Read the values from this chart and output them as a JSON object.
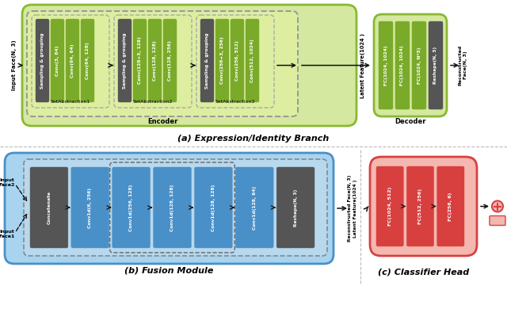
{
  "fig_width": 6.4,
  "fig_height": 4.04,
  "dpi": 100,
  "bg_color": "#ffffff",
  "top_bg_color": "#d4e8a0",
  "top_bg_border": "#8ab832",
  "green_block": "#7aaa2a",
  "green_block_light": "#8fbd35",
  "dark_block": "#555555",
  "decoder_bg": "#d4e8a0",
  "decoder_border": "#8ab832",
  "bottom_bg_color": "#a8d4f0",
  "bottom_bg_border": "#4a90c8",
  "blue_block": "#4a90c8",
  "classifier_bg": "#f4b8b0",
  "classifier_border": "#d84040",
  "red_block": "#d84040",
  "arrow_color": "#111111",
  "sa1_blocks": [
    "Sampling & grouping",
    "Conv(3, 64)",
    "Conv(64, 64)",
    "Conv(64, 128)"
  ],
  "sa1_dark": [
    true,
    false,
    false,
    false
  ],
  "sa2_blocks": [
    "Sampling & grouping",
    "Conv(128+3, 128)",
    "Conv(128, 128)",
    "Conv(128, 256)"
  ],
  "sa2_dark": [
    true,
    false,
    false,
    false
  ],
  "sa3_blocks": [
    "Sampling & grouping",
    "Conv(256+3, 256)",
    "Conv(256, 512)",
    "Conv(512, 1024)"
  ],
  "sa3_dark": [
    true,
    false,
    false,
    false
  ],
  "decoder_blocks": [
    "FC(1024, 1024)",
    "FC(1024, 1024)",
    "FC(1024, N*3)",
    "Reshape(N, 3)"
  ],
  "decoder_dark": [
    false,
    false,
    false,
    true
  ],
  "fusion_blocks": [
    "Concatenate",
    "Conv1d(6, 256)",
    "Conv1d(256, 128)",
    "Conv1d(128, 128)",
    "Conv1d(128, 128)",
    "Conv1d(128, 64)",
    "Reshape(N, 3)"
  ],
  "fusion_dark": [
    true,
    false,
    false,
    false,
    false,
    false,
    true
  ],
  "classifier_blocks": [
    "FC(1024, 512)",
    "FC(512, 256)",
    "FC(256, 6)"
  ],
  "subtitle_a": "(a) Expression/Identity Branch",
  "subtitle_b": "(b) Fusion Module",
  "subtitle_c": "(c) Classifier Head"
}
